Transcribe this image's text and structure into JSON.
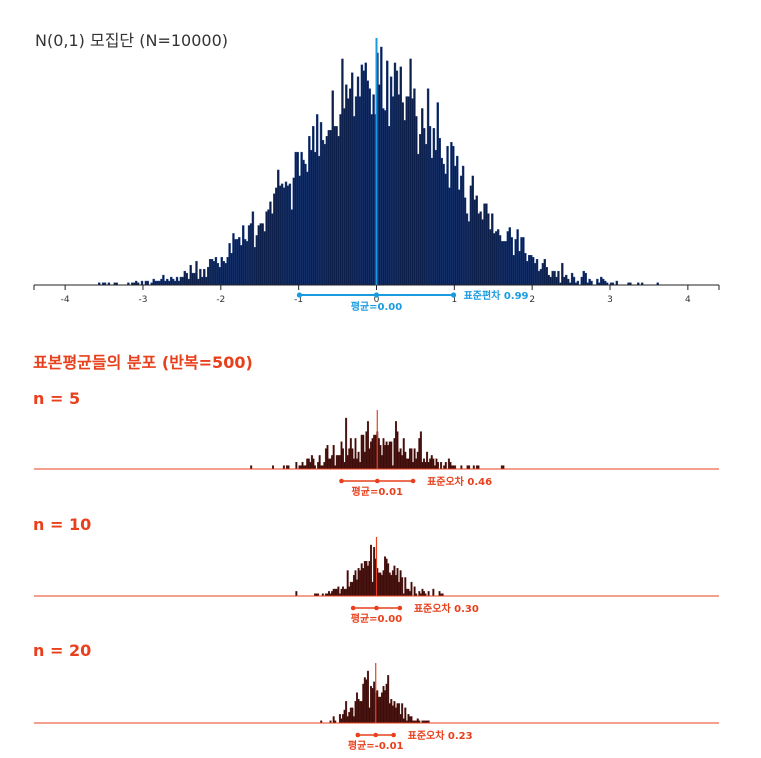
{
  "colors": {
    "population_bar": "#0b1f4a",
    "population_bar_stroke": "#1d3f86",
    "population_accent": "#1a9be0",
    "sample_accent": "#e8401c",
    "sample_bar": "#3a0c0c",
    "axis": "#222222"
  },
  "chart_data": [
    {
      "type": "bar",
      "title": "N(0,1) 모집단 (N=10000)",
      "x_ticks": [
        "-4",
        "-3",
        "-2",
        "-1",
        "0",
        "1",
        "2",
        "3",
        "4"
      ],
      "xlim": [
        -4.4,
        4.4
      ],
      "distribution": "normal",
      "n_points": 10000,
      "mean": 0.0,
      "sd": 0.99,
      "grid": false,
      "annotations": {
        "mean_label": "평균=0.00",
        "spread_label": "표준편차 0.99"
      }
    },
    {
      "type": "bar",
      "title": "표본평균들의 분포 (반복=500)",
      "panel_label": "n = 5",
      "sample_size": 5,
      "repetitions": 500,
      "xlim": [
        -4.4,
        4.4
      ],
      "mean": 0.01,
      "se": 0.46,
      "annotations": {
        "mean_label": "평균=0.01",
        "spread_label": "표준오차 0.46"
      }
    },
    {
      "type": "bar",
      "panel_label": "n = 10",
      "sample_size": 10,
      "repetitions": 500,
      "xlim": [
        -4.4,
        4.4
      ],
      "mean": 0.0,
      "se": 0.3,
      "annotations": {
        "mean_label": "평균=0.00",
        "spread_label": "표준오차 0.30"
      }
    },
    {
      "type": "bar",
      "panel_label": "n = 20",
      "sample_size": 20,
      "repetitions": 500,
      "xlim": [
        -4.4,
        4.4
      ],
      "mean": -0.01,
      "se": 0.23,
      "annotations": {
        "mean_label": "평균=-0.01",
        "spread_label": "표준오차 0.23"
      }
    }
  ]
}
